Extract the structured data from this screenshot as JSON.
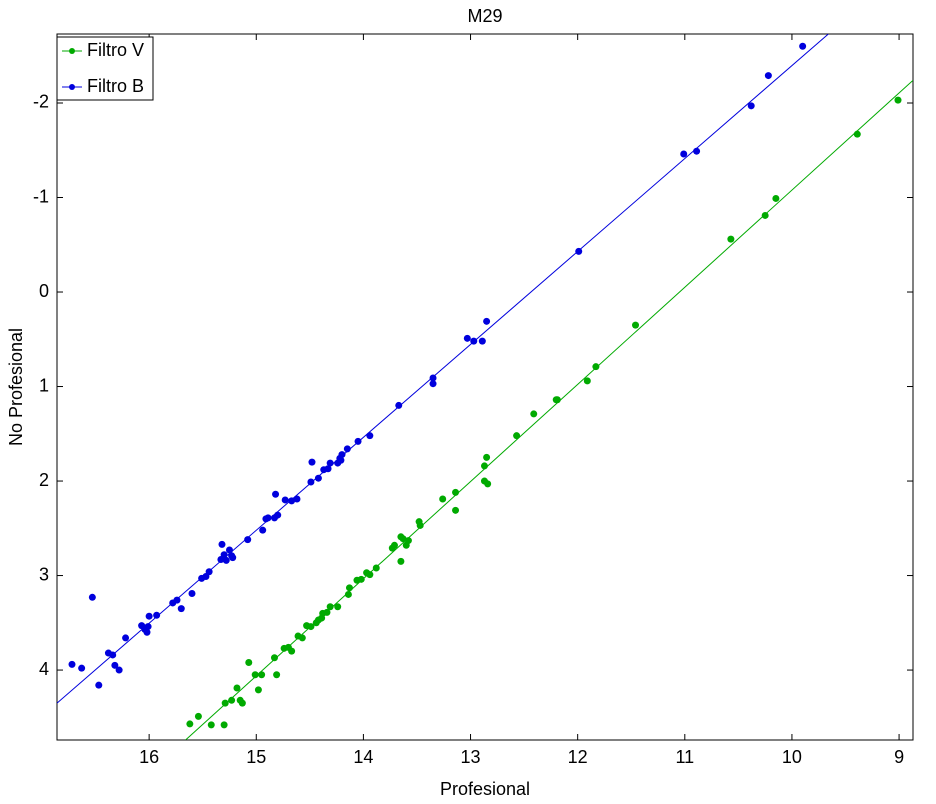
{
  "chart_data": {
    "type": "scatter",
    "title": "M29",
    "x_label": "Profesional",
    "y_label": "No Profesional",
    "xlim": [
      16.86,
      8.87
    ],
    "ylim": [
      4.74,
      -2.73
    ],
    "xticks": [
      16,
      15,
      14,
      13,
      12,
      11,
      10,
      9
    ],
    "yticks": [
      -2,
      -1,
      0,
      1,
      2,
      3,
      4
    ],
    "legend": "upper left",
    "series": [
      {
        "name": "Filtro V",
        "color": "#00aa00",
        "x": [
          15.62,
          15.54,
          15.42,
          15.3,
          15.29,
          15.23,
          15.18,
          15.15,
          15.13,
          15.07,
          15.01,
          14.98,
          14.95,
          14.83,
          14.81,
          14.74,
          14.7,
          14.67,
          14.61,
          14.57,
          14.53,
          14.49,
          14.44,
          14.42,
          14.39,
          14.38,
          14.34,
          14.31,
          14.24,
          14.14,
          14.13,
          14.06,
          14.02,
          13.97,
          13.94,
          13.88,
          13.73,
          13.71,
          13.65,
          13.65,
          13.63,
          13.6,
          13.58,
          13.48,
          13.47,
          13.26,
          13.14,
          13.14,
          12.87,
          12.87,
          12.84,
          12.85,
          12.57,
          12.41,
          12.2,
          12.19,
          11.91,
          11.83,
          11.46,
          10.57,
          10.25,
          10.15,
          9.39,
          9.01
        ],
        "y": [
          4.57,
          4.49,
          4.58,
          4.58,
          4.35,
          4.32,
          4.19,
          4.32,
          4.35,
          3.92,
          4.05,
          4.21,
          4.05,
          3.87,
          4.05,
          3.77,
          3.76,
          3.8,
          3.64,
          3.66,
          3.53,
          3.54,
          3.5,
          3.47,
          3.45,
          3.4,
          3.39,
          3.33,
          3.33,
          3.2,
          3.13,
          3.05,
          3.04,
          2.97,
          2.99,
          2.92,
          2.71,
          2.68,
          2.59,
          2.85,
          2.61,
          2.68,
          2.63,
          2.43,
          2.47,
          2.19,
          2.12,
          2.31,
          2.0,
          1.84,
          2.03,
          1.75,
          1.52,
          1.29,
          1.14,
          1.14,
          0.94,
          0.79,
          0.35,
          -0.56,
          -0.81,
          -0.99,
          -1.67,
          -2.03
        ],
        "fit": {
          "x": [
            15.66,
            8.87
          ],
          "y": [
            4.74,
            -2.24
          ]
        }
      },
      {
        "name": "Filtro B",
        "color": "#0000dd",
        "x": [
          16.72,
          16.63,
          16.53,
          16.47,
          16.38,
          16.34,
          16.32,
          16.28,
          16.22,
          16.07,
          16.04,
          16.02,
          16.01,
          16.0,
          15.93,
          15.78,
          15.74,
          15.7,
          15.6,
          15.51,
          15.47,
          15.44,
          15.33,
          15.32,
          15.3,
          15.28,
          15.25,
          15.23,
          15.22,
          15.08,
          14.94,
          14.91,
          14.89,
          14.83,
          14.82,
          14.8,
          14.73,
          14.67,
          14.62,
          14.49,
          14.48,
          14.42,
          14.37,
          14.33,
          14.31,
          14.24,
          14.22,
          14.21,
          14.2,
          14.15,
          14.05,
          13.94,
          13.67,
          13.35,
          13.35,
          13.03,
          12.97,
          12.89,
          12.85,
          11.99,
          11.01,
          10.89,
          10.38,
          10.22,
          9.9
        ],
        "y": [
          3.94,
          3.98,
          3.23,
          4.16,
          3.82,
          3.84,
          3.95,
          4.0,
          3.66,
          3.53,
          3.57,
          3.6,
          3.54,
          3.43,
          3.42,
          3.29,
          3.26,
          3.35,
          3.19,
          3.03,
          3.01,
          2.96,
          2.83,
          2.67,
          2.78,
          2.84,
          2.73,
          2.79,
          2.81,
          2.62,
          2.52,
          2.4,
          2.39,
          2.39,
          2.14,
          2.36,
          2.2,
          2.21,
          2.19,
          2.01,
          1.8,
          1.97,
          1.88,
          1.87,
          1.81,
          1.81,
          1.76,
          1.78,
          1.72,
          1.66,
          1.58,
          1.52,
          1.2,
          0.97,
          0.91,
          0.49,
          0.52,
          0.52,
          0.31,
          -0.43,
          -1.46,
          -1.49,
          -1.97,
          -2.29,
          -2.6
        ],
        "fit": {
          "x": [
            16.86,
            9.66
          ],
          "y": [
            4.35,
            -2.73
          ]
        }
      }
    ]
  }
}
